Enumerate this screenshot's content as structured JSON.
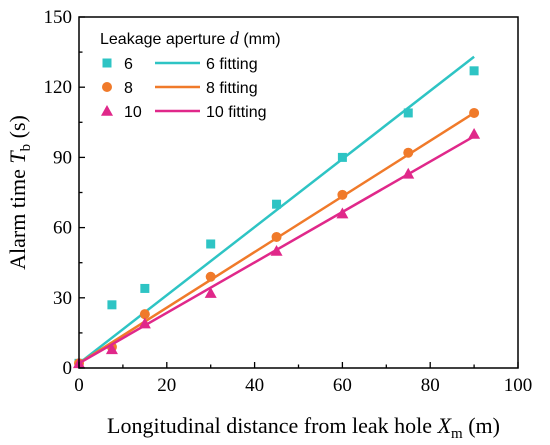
{
  "chart_data": {
    "type": "scatter",
    "title": "",
    "xlabel_prefix": "Longitudinal distance from leak hole ",
    "xlabel_var": "X",
    "xlabel_sub": "m",
    "xlabel_unit": " (m)",
    "ylabel_prefix": "Alarm time ",
    "ylabel_var": "T",
    "ylabel_sub": "b",
    "ylabel_unit": " (s)",
    "xlim": [
      0,
      100
    ],
    "ylim": [
      0,
      150
    ],
    "xticks": [
      "0",
      "20",
      "40",
      "60",
      "80",
      "100"
    ],
    "yticks": [
      "0",
      "30",
      "60",
      "90",
      "120",
      "150"
    ],
    "legend": {
      "title_prefix": "Leakage aperture ",
      "title_var": "d",
      "title_unit": " (mm)",
      "position": "top-left"
    },
    "series": [
      {
        "name": "6",
        "fit_name": "6 fitting",
        "marker": "square",
        "color": "#2ec4c4",
        "x": [
          0,
          7.5,
          15,
          30,
          45,
          60,
          75,
          90
        ],
        "y": [
          2,
          27,
          34,
          53,
          70,
          90,
          109,
          127
        ],
        "fit": [
          [
            0,
            2
          ],
          [
            90,
            133
          ]
        ]
      },
      {
        "name": "8",
        "fit_name": "8 fitting",
        "marker": "circle",
        "color": "#f07a2a",
        "x": [
          0,
          7.5,
          15,
          30,
          45,
          60,
          75,
          90
        ],
        "y": [
          2,
          9,
          23,
          39,
          56,
          74,
          92,
          109
        ],
        "fit": [
          [
            0,
            2
          ],
          [
            90,
            109
          ]
        ]
      },
      {
        "name": "10",
        "fit_name": "10 fitting",
        "marker": "triangle",
        "color": "#e0288a",
        "x": [
          0,
          7.5,
          15,
          30,
          45,
          60,
          75,
          90
        ],
        "y": [
          2,
          8,
          19,
          32,
          50,
          66,
          83,
          100
        ],
        "fit": [
          [
            0,
            2
          ],
          [
            90,
            99
          ]
        ]
      }
    ]
  }
}
